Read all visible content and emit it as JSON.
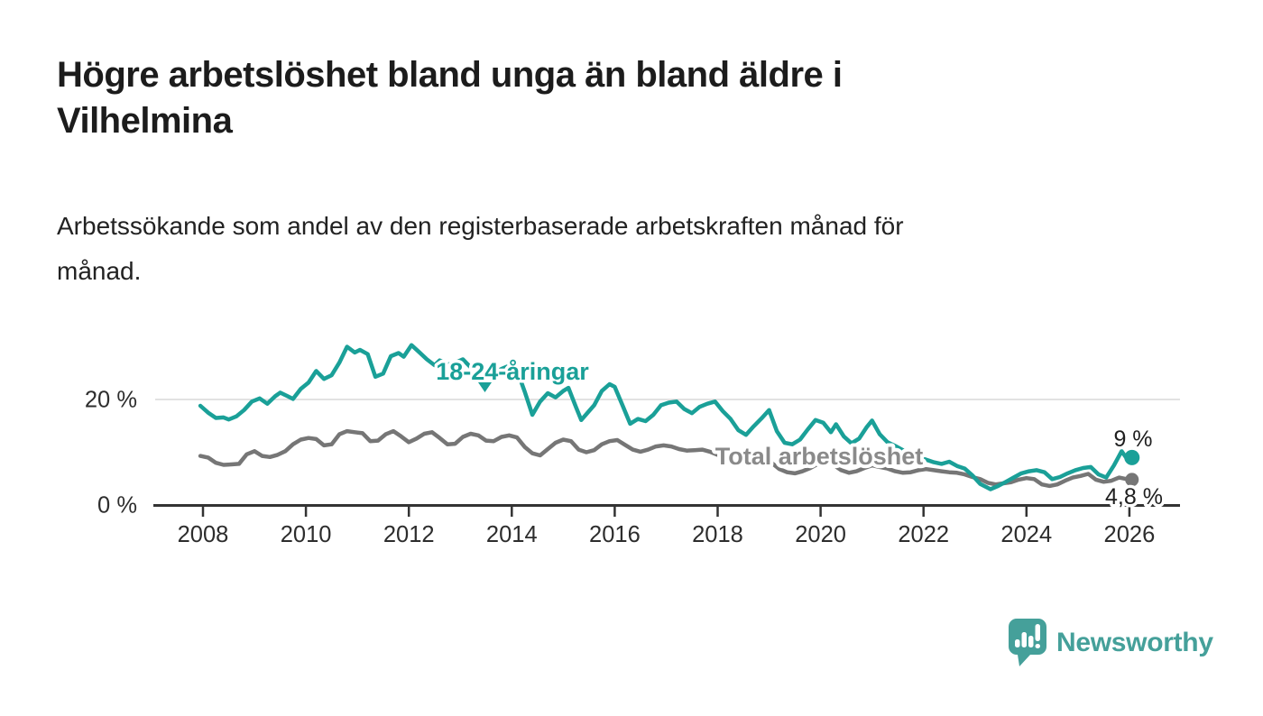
{
  "header": {
    "title": "Högre arbetslöshet bland unga än bland äldre i\nVilhelmina",
    "subtitle": "Arbetssökande som andel av den registerbaserade arbetskraften månad för\nmånad."
  },
  "chart_data": {
    "type": "line",
    "title": "Högre arbetslöshet bland unga än bland äldre i Vilhelmina",
    "subtitle": "Arbetssökande som andel av den registerbaserade arbetskraften månad för månad.",
    "unit": "%",
    "x_axis": {
      "ticks": [
        2008,
        2010,
        2012,
        2014,
        2016,
        2018,
        2020,
        2022,
        2024,
        2026
      ],
      "range_years": [
        2007.05,
        2027.0
      ]
    },
    "y_axis": {
      "ticks": [
        {
          "value": 0,
          "label": "0 %"
        },
        {
          "value": 20,
          "label": "20 %"
        }
      ],
      "range": [
        0,
        34
      ],
      "gridlines_at": [
        20
      ]
    },
    "series": [
      {
        "name": "Total arbetslöshet",
        "color": "#767676",
        "label_color": "#8a8a8a",
        "end_label": "4,8 %",
        "end_value": 4.8,
        "points": [
          [
            2007.95,
            9.3
          ],
          [
            2008.1,
            9.0
          ],
          [
            2008.25,
            8.0
          ],
          [
            2008.4,
            7.6
          ],
          [
            2008.55,
            7.7
          ],
          [
            2008.7,
            7.8
          ],
          [
            2008.85,
            9.6
          ],
          [
            2009.0,
            10.2
          ],
          [
            2009.15,
            9.3
          ],
          [
            2009.3,
            9.1
          ],
          [
            2009.45,
            9.5
          ],
          [
            2009.6,
            10.2
          ],
          [
            2009.75,
            11.5
          ],
          [
            2009.9,
            12.4
          ],
          [
            2010.05,
            12.7
          ],
          [
            2010.2,
            12.5
          ],
          [
            2010.35,
            11.3
          ],
          [
            2010.5,
            11.5
          ],
          [
            2010.65,
            13.4
          ],
          [
            2010.8,
            14.0
          ],
          [
            2010.95,
            13.8
          ],
          [
            2011.1,
            13.6
          ],
          [
            2011.25,
            12.1
          ],
          [
            2011.4,
            12.2
          ],
          [
            2011.55,
            13.4
          ],
          [
            2011.7,
            14.0
          ],
          [
            2011.85,
            13.0
          ],
          [
            2012.0,
            11.9
          ],
          [
            2012.15,
            12.6
          ],
          [
            2012.3,
            13.5
          ],
          [
            2012.45,
            13.8
          ],
          [
            2012.6,
            12.7
          ],
          [
            2012.75,
            11.5
          ],
          [
            2012.9,
            11.6
          ],
          [
            2013.05,
            12.9
          ],
          [
            2013.2,
            13.5
          ],
          [
            2013.35,
            13.2
          ],
          [
            2013.5,
            12.2
          ],
          [
            2013.65,
            12.1
          ],
          [
            2013.8,
            12.9
          ],
          [
            2013.95,
            13.2
          ],
          [
            2014.1,
            12.8
          ],
          [
            2014.25,
            11.0
          ],
          [
            2014.4,
            9.8
          ],
          [
            2014.55,
            9.4
          ],
          [
            2014.7,
            10.6
          ],
          [
            2014.85,
            11.8
          ],
          [
            2015.0,
            12.4
          ],
          [
            2015.15,
            12.1
          ],
          [
            2015.3,
            10.5
          ],
          [
            2015.45,
            10.0
          ],
          [
            2015.6,
            10.4
          ],
          [
            2015.75,
            11.5
          ],
          [
            2015.9,
            12.1
          ],
          [
            2016.05,
            12.3
          ],
          [
            2016.2,
            11.4
          ],
          [
            2016.35,
            10.5
          ],
          [
            2016.5,
            10.1
          ],
          [
            2016.65,
            10.5
          ],
          [
            2016.8,
            11.1
          ],
          [
            2016.95,
            11.3
          ],
          [
            2017.1,
            11.1
          ],
          [
            2017.25,
            10.6
          ],
          [
            2017.4,
            10.3
          ],
          [
            2017.55,
            10.4
          ],
          [
            2017.7,
            10.5
          ],
          [
            2017.85,
            10.1
          ],
          [
            2018.0,
            9.5
          ],
          [
            2018.15,
            9.0
          ],
          [
            2018.3,
            8.4
          ],
          [
            2018.45,
            7.9
          ],
          [
            2018.6,
            7.7
          ],
          [
            2018.75,
            8.0
          ],
          [
            2018.9,
            8.1
          ],
          [
            2019.05,
            8.0
          ],
          [
            2019.2,
            6.8
          ],
          [
            2019.35,
            6.2
          ],
          [
            2019.5,
            6.0
          ],
          [
            2019.65,
            6.4
          ],
          [
            2019.8,
            7.0
          ],
          [
            2019.95,
            7.8
          ],
          [
            2020.1,
            8.0
          ],
          [
            2020.25,
            7.6
          ],
          [
            2020.4,
            6.6
          ],
          [
            2020.55,
            6.1
          ],
          [
            2020.7,
            6.4
          ],
          [
            2020.85,
            7.0
          ],
          [
            2021.0,
            7.5
          ],
          [
            2021.15,
            7.2
          ],
          [
            2021.3,
            6.9
          ],
          [
            2021.45,
            6.4
          ],
          [
            2021.6,
            6.1
          ],
          [
            2021.75,
            6.2
          ],
          [
            2021.9,
            6.6
          ],
          [
            2022.05,
            6.8
          ],
          [
            2022.2,
            6.6
          ],
          [
            2022.35,
            6.4
          ],
          [
            2022.5,
            6.2
          ],
          [
            2022.65,
            6.1
          ],
          [
            2022.8,
            5.8
          ],
          [
            2022.95,
            5.3
          ],
          [
            2023.1,
            4.9
          ],
          [
            2023.25,
            4.2
          ],
          [
            2023.4,
            3.9
          ],
          [
            2023.55,
            4.1
          ],
          [
            2023.7,
            4.3
          ],
          [
            2023.85,
            4.8
          ],
          [
            2024.0,
            5.1
          ],
          [
            2024.15,
            4.9
          ],
          [
            2024.3,
            3.9
          ],
          [
            2024.45,
            3.6
          ],
          [
            2024.6,
            3.9
          ],
          [
            2024.75,
            4.6
          ],
          [
            2024.9,
            5.2
          ],
          [
            2025.05,
            5.5
          ],
          [
            2025.2,
            5.9
          ],
          [
            2025.35,
            4.8
          ],
          [
            2025.5,
            4.4
          ],
          [
            2025.65,
            4.6
          ],
          [
            2025.8,
            5.2
          ],
          [
            2025.95,
            4.9
          ],
          [
            2026.05,
            4.8
          ]
        ]
      },
      {
        "name": "18-24-åringar",
        "color": "#1aa098",
        "label_color": "#1aa098",
        "end_label": "9 %",
        "end_value": 9.0,
        "points": [
          [
            2007.95,
            18.8
          ],
          [
            2008.1,
            17.5
          ],
          [
            2008.25,
            16.5
          ],
          [
            2008.4,
            16.6
          ],
          [
            2008.5,
            16.2
          ],
          [
            2008.65,
            16.8
          ],
          [
            2008.8,
            18.0
          ],
          [
            2008.95,
            19.6
          ],
          [
            2009.1,
            20.2
          ],
          [
            2009.25,
            19.2
          ],
          [
            2009.4,
            20.6
          ],
          [
            2009.5,
            21.3
          ],
          [
            2009.65,
            20.6
          ],
          [
            2009.75,
            20.1
          ],
          [
            2009.9,
            22.0
          ],
          [
            2010.05,
            23.2
          ],
          [
            2010.2,
            25.4
          ],
          [
            2010.35,
            23.9
          ],
          [
            2010.5,
            24.6
          ],
          [
            2010.65,
            27.0
          ],
          [
            2010.8,
            30.0
          ],
          [
            2010.95,
            28.9
          ],
          [
            2011.05,
            29.4
          ],
          [
            2011.2,
            28.6
          ],
          [
            2011.35,
            24.3
          ],
          [
            2011.5,
            24.9
          ],
          [
            2011.65,
            28.2
          ],
          [
            2011.8,
            28.8
          ],
          [
            2011.9,
            28.1
          ],
          [
            2012.05,
            30.3
          ],
          [
            2012.2,
            29.0
          ],
          [
            2012.35,
            27.6
          ],
          [
            2012.5,
            26.5
          ],
          [
            2012.6,
            27.4
          ],
          [
            2012.75,
            26.6
          ],
          [
            2012.9,
            27.0
          ],
          [
            2013.05,
            27.6
          ],
          [
            2013.2,
            26.1
          ],
          [
            2013.35,
            24.9
          ],
          [
            2013.5,
            24.5
          ],
          [
            2013.65,
            25.0
          ],
          [
            2013.8,
            25.8
          ],
          [
            2013.95,
            26.4
          ],
          [
            2014.1,
            25.6
          ],
          [
            2014.25,
            21.5
          ],
          [
            2014.4,
            17.1
          ],
          [
            2014.55,
            19.6
          ],
          [
            2014.7,
            21.2
          ],
          [
            2014.85,
            20.4
          ],
          [
            2015.0,
            21.6
          ],
          [
            2015.1,
            22.2
          ],
          [
            2015.25,
            18.5
          ],
          [
            2015.35,
            16.1
          ],
          [
            2015.5,
            17.8
          ],
          [
            2015.6,
            18.9
          ],
          [
            2015.75,
            21.6
          ],
          [
            2015.9,
            22.9
          ],
          [
            2016.0,
            22.4
          ],
          [
            2016.15,
            18.9
          ],
          [
            2016.3,
            15.4
          ],
          [
            2016.45,
            16.3
          ],
          [
            2016.6,
            15.9
          ],
          [
            2016.75,
            17.1
          ],
          [
            2016.9,
            18.9
          ],
          [
            2017.05,
            19.4
          ],
          [
            2017.2,
            19.6
          ],
          [
            2017.35,
            18.2
          ],
          [
            2017.5,
            17.4
          ],
          [
            2017.65,
            18.6
          ],
          [
            2017.8,
            19.2
          ],
          [
            2017.95,
            19.6
          ],
          [
            2018.1,
            17.8
          ],
          [
            2018.25,
            16.3
          ],
          [
            2018.4,
            14.2
          ],
          [
            2018.55,
            13.3
          ],
          [
            2018.7,
            14.9
          ],
          [
            2018.85,
            16.4
          ],
          [
            2019.0,
            18.0
          ],
          [
            2019.15,
            14.0
          ],
          [
            2019.3,
            11.8
          ],
          [
            2019.45,
            11.5
          ],
          [
            2019.6,
            12.4
          ],
          [
            2019.75,
            14.3
          ],
          [
            2019.9,
            16.1
          ],
          [
            2020.05,
            15.6
          ],
          [
            2020.2,
            13.8
          ],
          [
            2020.3,
            15.3
          ],
          [
            2020.45,
            13.0
          ],
          [
            2020.6,
            11.7
          ],
          [
            2020.75,
            12.6
          ],
          [
            2020.9,
            14.8
          ],
          [
            2021.0,
            16.0
          ],
          [
            2021.15,
            13.4
          ],
          [
            2021.3,
            11.9
          ],
          [
            2021.45,
            11.2
          ],
          [
            2021.6,
            10.4
          ],
          [
            2021.75,
            9.7
          ],
          [
            2021.9,
            9.0
          ],
          [
            2022.05,
            8.6
          ],
          [
            2022.2,
            8.1
          ],
          [
            2022.35,
            7.8
          ],
          [
            2022.5,
            8.2
          ],
          [
            2022.65,
            7.4
          ],
          [
            2022.8,
            6.9
          ],
          [
            2022.95,
            5.6
          ],
          [
            2023.1,
            4.0
          ],
          [
            2023.3,
            3.0
          ],
          [
            2023.45,
            3.6
          ],
          [
            2023.6,
            4.4
          ],
          [
            2023.75,
            5.2
          ],
          [
            2023.9,
            6.0
          ],
          [
            2024.05,
            6.4
          ],
          [
            2024.2,
            6.6
          ],
          [
            2024.35,
            6.2
          ],
          [
            2024.5,
            4.9
          ],
          [
            2024.65,
            5.3
          ],
          [
            2024.8,
            6.0
          ],
          [
            2024.95,
            6.6
          ],
          [
            2025.1,
            7.0
          ],
          [
            2025.25,
            7.2
          ],
          [
            2025.4,
            5.8
          ],
          [
            2025.55,
            5.2
          ],
          [
            2025.7,
            7.5
          ],
          [
            2025.85,
            10.2
          ],
          [
            2025.95,
            8.8
          ],
          [
            2026.05,
            9.0
          ]
        ]
      }
    ],
    "annotations": {
      "axis_color": "#333333",
      "gridline_color": "#d9d9d9",
      "tick_label_color": "#2d2d2d",
      "end_label_color": "#1f1f1f"
    }
  },
  "branding": {
    "logo_text": "Newsworthy",
    "logo_color": "#45a09a"
  }
}
